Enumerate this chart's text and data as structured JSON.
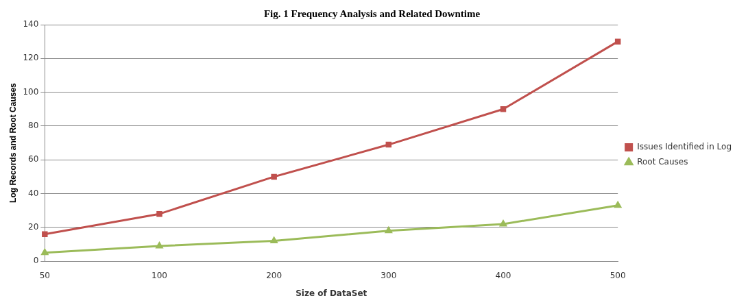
{
  "chart_data": {
    "type": "line",
    "title": "Fig. 1 Frequency Analysis and Related Downtime",
    "xlabel": "Size of DataSet",
    "ylabel": "Log Records and Root Causes",
    "categories": [
      "50",
      "100",
      "200",
      "300",
      "400",
      "500"
    ],
    "series": [
      {
        "name": "Issues Identified in Log",
        "color": "#c0504d",
        "marker": "square",
        "values": [
          16,
          28,
          50,
          69,
          90,
          130
        ]
      },
      {
        "name": "Root Causes",
        "color": "#9bbb59",
        "marker": "triangle",
        "values": [
          5,
          9,
          12,
          18,
          22,
          33
        ]
      }
    ],
    "ylim": [
      0,
      140
    ],
    "yticks": [
      0,
      20,
      40,
      60,
      80,
      100,
      120,
      140
    ],
    "grid": "y",
    "legend": "right",
    "line_style": "solid"
  }
}
